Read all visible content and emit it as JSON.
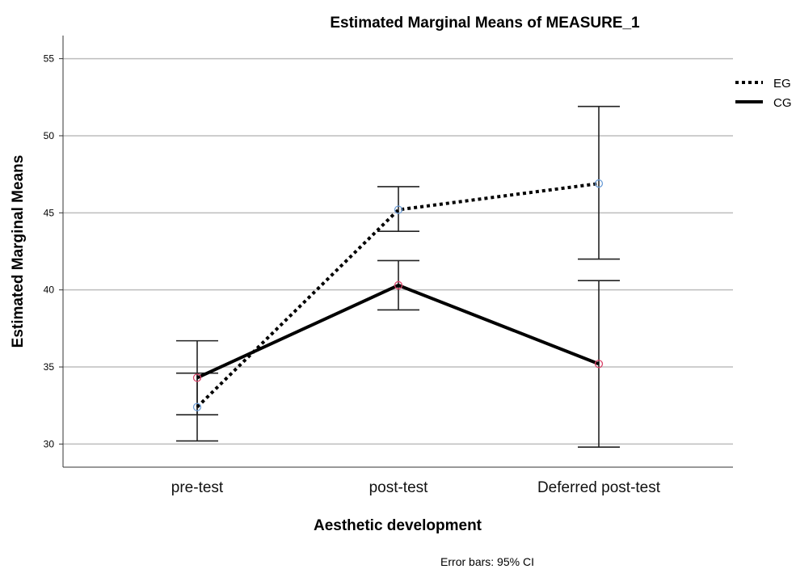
{
  "chart_data": {
    "type": "line",
    "title": "Estimated Marginal Means of MEASURE_1",
    "xlabel": "Aesthetic development",
    "ylabel": "Estimated Marginal Means",
    "categories": [
      "pre-test",
      "post-test",
      "Deferred post-test"
    ],
    "ylim": [
      28.5,
      56.5
    ],
    "yticks": [
      30,
      35,
      40,
      45,
      50,
      55
    ],
    "grid": true,
    "legend_position": "top-right",
    "series": [
      {
        "name": "EG",
        "line_style": "dotted",
        "marker_color": "#6f9fd8",
        "values": [
          32.4,
          45.2,
          46.9
        ],
        "ci_low": [
          30.2,
          43.8,
          42.0
        ],
        "ci_high": [
          34.6,
          46.7,
          51.9
        ]
      },
      {
        "name": "CG",
        "line_style": "solid",
        "marker_color": "#d9456a",
        "values": [
          34.3,
          40.3,
          35.2
        ],
        "ci_low": [
          31.9,
          38.7,
          29.8
        ],
        "ci_high": [
          36.7,
          41.9,
          40.6
        ]
      }
    ],
    "footnote": "Error bars: 95% CI"
  }
}
